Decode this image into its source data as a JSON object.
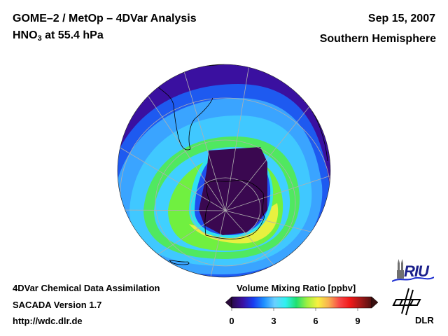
{
  "header": {
    "title_line1": "GOME–2 / MetOp – 4DVar Analysis",
    "species_main": "HNO",
    "species_sub": "3",
    "species_rest": " at 55.4 hPa",
    "date": "Sep 15, 2007",
    "region": "Southern Hemisphere"
  },
  "footer": {
    "line1": "4DVar Chemical Data Assimilation",
    "line2": "SACADA Version 1.7",
    "line3": "http://wdc.dlr.de"
  },
  "colorbar": {
    "title": "Volume Mixing Ratio [ppbv]",
    "ticks": [
      "0",
      "3",
      "6",
      "9"
    ],
    "range": [
      0,
      10
    ],
    "colors": [
      "#2a0a4a",
      "#3a10a0",
      "#1a3cf0",
      "#1e90ff",
      "#6ad0ff",
      "#30f0f0",
      "#20e070",
      "#a0f040",
      "#f8f040",
      "#f8b050",
      "#f84848",
      "#f01818",
      "#a01818",
      "#501010"
    ]
  },
  "logos": {
    "riu": "RIU",
    "dlr": "DLR"
  },
  "map": {
    "projection": "orthographic-south-polar",
    "colors": {
      "low": "#3a10a0",
      "ocean_band": "#1e6ef0",
      "mid": "#40b8ff",
      "cyan": "#30e0f0",
      "green": "#60f040",
      "yellow": "#e8f040",
      "vortex": "#3a0850",
      "coast": "#000000",
      "grid": "#aaaaaa"
    }
  }
}
